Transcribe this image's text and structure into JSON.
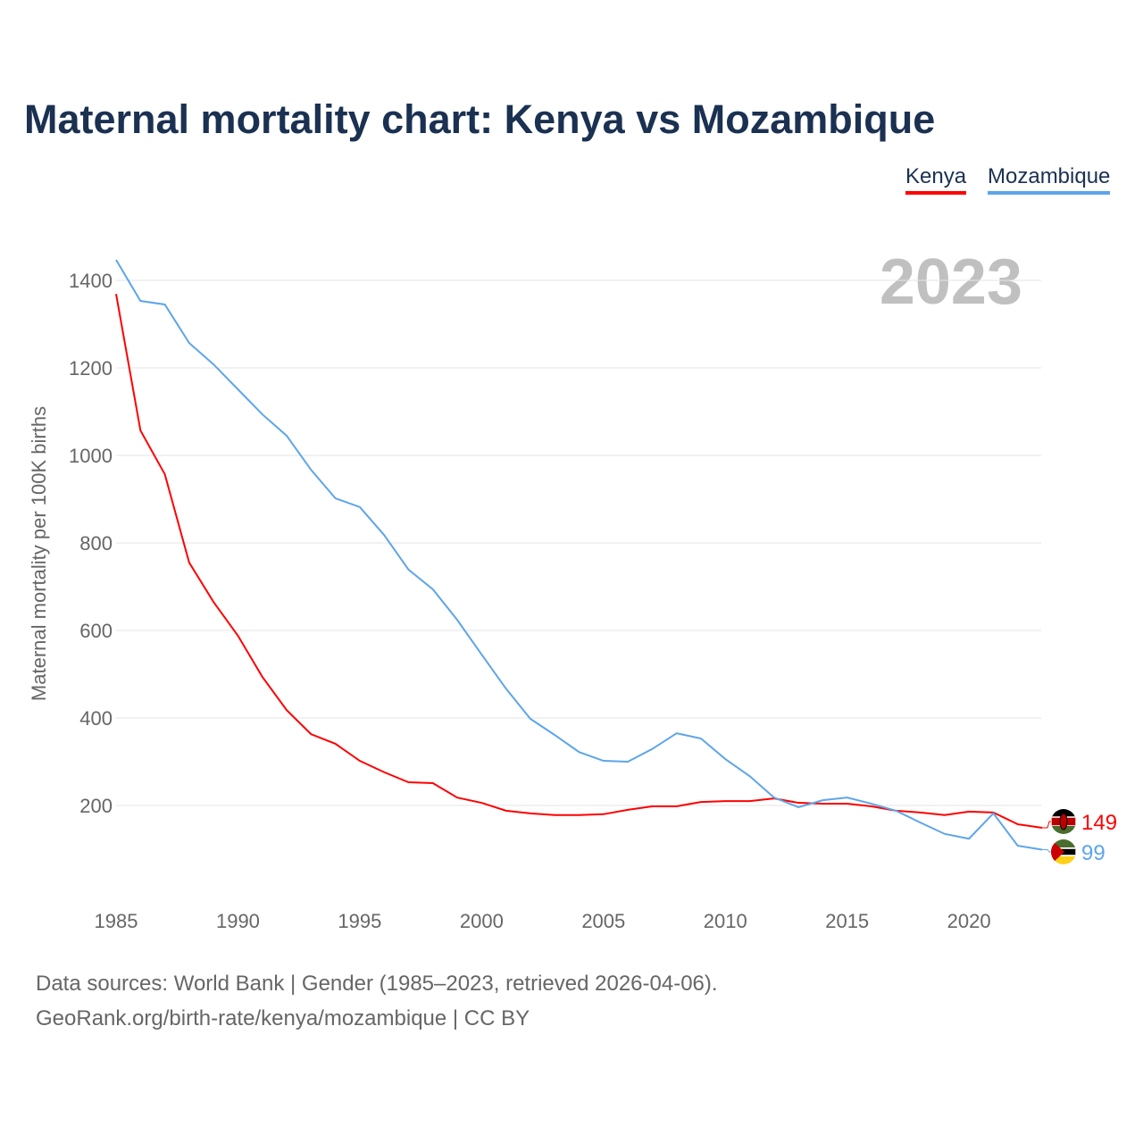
{
  "title": "Maternal mortality chart: Kenya vs Mozambique",
  "legend": [
    "Kenya",
    "Mozambique"
  ],
  "year_label": "2023",
  "sources": [
    "Data sources: World Bank | Gender (1985–2023, retrieved 2026-04-06).",
    "GeoRank.org/birth-rate/kenya/mozambique | CC BY"
  ],
  "chart_data": {
    "type": "line",
    "title": "Maternal mortality chart: Kenya vs Mozambique",
    "xlabel": "",
    "ylabel": "Maternal mortality per 100K births",
    "xlim": [
      1985,
      2023
    ],
    "ylim": [
      0,
      1450
    ],
    "xticks": [
      1985,
      1990,
      1995,
      2000,
      2005,
      2010,
      2015,
      2020
    ],
    "yticks": [
      200,
      400,
      600,
      800,
      1000,
      1200,
      1400
    ],
    "grid": true,
    "legend_position": "top-right",
    "x": [
      1985,
      1986,
      1987,
      1988,
      1989,
      1990,
      1991,
      1992,
      1993,
      1994,
      1995,
      1996,
      1997,
      1998,
      1999,
      2000,
      2001,
      2002,
      2003,
      2004,
      2005,
      2006,
      2007,
      2008,
      2009,
      2010,
      2011,
      2012,
      2013,
      2014,
      2015,
      2016,
      2017,
      2018,
      2019,
      2020,
      2021,
      2022,
      2023
    ],
    "series": [
      {
        "name": "Kenya",
        "color": "#ff0000",
        "end_label": "149",
        "values": [
          1369,
          1057,
          957,
          755,
          665,
          588,
          494,
          418,
          363,
          341,
          302,
          276,
          253,
          251,
          218,
          206,
          188,
          182,
          178,
          178,
          180,
          190,
          198,
          198,
          208,
          210,
          210,
          216,
          206,
          204,
          204,
          198,
          188,
          184,
          178,
          186,
          184,
          157,
          149
        ]
      },
      {
        "name": "Mozambique",
        "color": "#5da5ea",
        "end_label": "99",
        "values": [
          1447,
          1353,
          1345,
          1257,
          1208,
          1151,
          1094,
          1045,
          967,
          902,
          882,
          818,
          739,
          694,
          624,
          545,
          467,
          398,
          361,
          322,
          302,
          300,
          329,
          365,
          353,
          306,
          267,
          218,
          196,
          212,
          218,
          204,
          188,
          161,
          135,
          124,
          182,
          108,
          99
        ]
      }
    ]
  }
}
